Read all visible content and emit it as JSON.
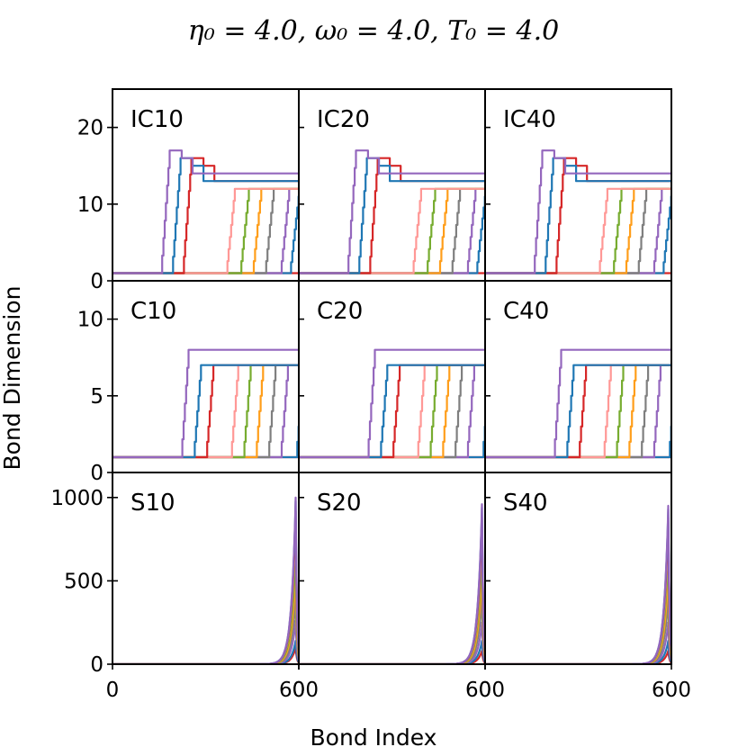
{
  "figure": {
    "title": "η₀ = 4.0, ω₀ = 4.0, T₀ = 4.0",
    "xlabel": "Bond Index",
    "ylabel": "Bond Dimension"
  },
  "chart_data": {
    "type": "line",
    "xlim": [
      0,
      600
    ],
    "xticks": [
      0,
      600
    ],
    "xtick_labels": [
      "0",
      "600"
    ],
    "colors": [
      "#d62728",
      "#1f77b4",
      "#9467bd",
      "#7f7f7f",
      "#ff9e1b",
      "#77ac30",
      "#ff9896",
      "#d62728",
      "#1f77b4",
      "#9467bd"
    ],
    "rows": [
      {
        "family": "IC",
        "ylim": [
          0,
          25
        ],
        "yticks": [
          0,
          10,
          20
        ],
        "ytick_labels": [
          "0",
          "10",
          "20"
        ],
        "panels": [
          {
            "label": "IC10",
            "series": [
              {
                "onset": 600,
                "peak": 1
              },
              {
                "onset": 575,
                "peak": 11
              },
              {
                "onset": 545,
                "peak": 12
              },
              {
                "onset": 495,
                "peak": 12
              },
              {
                "onset": 455,
                "peak": 12
              },
              {
                "onset": 415,
                "peak": 12
              },
              {
                "onset": 370,
                "peak": 12
              },
              {
                "onset": 230,
                "peak": 16
              },
              {
                "onset": 195,
                "peak": 16
              },
              {
                "onset": 160,
                "peak": 17
              }
            ]
          },
          {
            "label": "IC20",
            "series": [
              {
                "onset": 600,
                "peak": 1
              },
              {
                "onset": 575,
                "peak": 11
              },
              {
                "onset": 545,
                "peak": 12
              },
              {
                "onset": 495,
                "peak": 12
              },
              {
                "onset": 455,
                "peak": 12
              },
              {
                "onset": 415,
                "peak": 12
              },
              {
                "onset": 370,
                "peak": 12
              },
              {
                "onset": 230,
                "peak": 16
              },
              {
                "onset": 195,
                "peak": 16
              },
              {
                "onset": 160,
                "peak": 17
              }
            ]
          },
          {
            "label": "IC40",
            "series": [
              {
                "onset": 600,
                "peak": 1
              },
              {
                "onset": 575,
                "peak": 11
              },
              {
                "onset": 545,
                "peak": 12
              },
              {
                "onset": 495,
                "peak": 12
              },
              {
                "onset": 455,
                "peak": 12
              },
              {
                "onset": 415,
                "peak": 12
              },
              {
                "onset": 370,
                "peak": 12
              },
              {
                "onset": 230,
                "peak": 16
              },
              {
                "onset": 195,
                "peak": 16
              },
              {
                "onset": 160,
                "peak": 17
              }
            ]
          }
        ]
      },
      {
        "family": "C",
        "ylim": [
          0,
          12.5
        ],
        "yticks": [
          0,
          5,
          10
        ],
        "ytick_labels": [
          "0",
          "5",
          "10"
        ],
        "panels": [
          {
            "label": "C10",
            "series": [
              {
                "onset": 600,
                "peak": 1
              },
              {
                "onset": 595,
                "peak": 7
              },
              {
                "onset": 545,
                "peak": 7
              },
              {
                "onset": 505,
                "peak": 7
              },
              {
                "onset": 465,
                "peak": 7
              },
              {
                "onset": 425,
                "peak": 7
              },
              {
                "onset": 385,
                "peak": 7
              },
              {
                "onset": 305,
                "peak": 7
              },
              {
                "onset": 265,
                "peak": 7
              },
              {
                "onset": 225,
                "peak": 8
              }
            ]
          },
          {
            "label": "C20",
            "series": [
              {
                "onset": 600,
                "peak": 1
              },
              {
                "onset": 595,
                "peak": 7
              },
              {
                "onset": 545,
                "peak": 7
              },
              {
                "onset": 505,
                "peak": 7
              },
              {
                "onset": 465,
                "peak": 7
              },
              {
                "onset": 425,
                "peak": 7
              },
              {
                "onset": 385,
                "peak": 7
              },
              {
                "onset": 305,
                "peak": 7
              },
              {
                "onset": 265,
                "peak": 7
              },
              {
                "onset": 225,
                "peak": 8
              }
            ]
          },
          {
            "label": "C40",
            "series": [
              {
                "onset": 600,
                "peak": 1
              },
              {
                "onset": 595,
                "peak": 7
              },
              {
                "onset": 545,
                "peak": 7
              },
              {
                "onset": 505,
                "peak": 7
              },
              {
                "onset": 465,
                "peak": 7
              },
              {
                "onset": 425,
                "peak": 7
              },
              {
                "onset": 385,
                "peak": 7
              },
              {
                "onset": 305,
                "peak": 7
              },
              {
                "onset": 265,
                "peak": 7
              },
              {
                "onset": 225,
                "peak": 8
              }
            ]
          }
        ]
      },
      {
        "family": "S",
        "ylim": [
          0,
          1150
        ],
        "yticks": [
          0,
          500,
          1000
        ],
        "ytick_labels": [
          "0",
          "500",
          "1000"
        ],
        "panels": [
          {
            "label": "S10",
            "series": [
              {
                "peak_x": 590,
                "peak": 100
              },
              {
                "peak_x": 590,
                "peak": 140
              },
              {
                "peak_x": 590,
                "peak": 260
              },
              {
                "peak_x": 590,
                "peak": 400
              },
              {
                "peak_x": 590,
                "peak": 550
              },
              {
                "peak_x": 590,
                "peak": 700
              },
              {
                "peak_x": 590,
                "peak": 870
              },
              {
                "peak_x": 590,
                "peak": 920
              },
              {
                "peak_x": 590,
                "peak": 980
              },
              {
                "peak_x": 590,
                "peak": 1000
              }
            ]
          },
          {
            "label": "S20",
            "series": [
              {
                "peak_x": 590,
                "peak": 80
              },
              {
                "peak_x": 590,
                "peak": 140
              },
              {
                "peak_x": 590,
                "peak": 250
              },
              {
                "peak_x": 590,
                "peak": 400
              },
              {
                "peak_x": 590,
                "peak": 550
              },
              {
                "peak_x": 590,
                "peak": 700
              },
              {
                "peak_x": 590,
                "peak": 820
              },
              {
                "peak_x": 590,
                "peak": 880
              },
              {
                "peak_x": 590,
                "peak": 940
              },
              {
                "peak_x": 590,
                "peak": 960
              }
            ]
          },
          {
            "label": "S40",
            "series": [
              {
                "peak_x": 590,
                "peak": 80
              },
              {
                "peak_x": 590,
                "peak": 140
              },
              {
                "peak_x": 590,
                "peak": 250
              },
              {
                "peak_x": 590,
                "peak": 400
              },
              {
                "peak_x": 590,
                "peak": 550
              },
              {
                "peak_x": 590,
                "peak": 700
              },
              {
                "peak_x": 590,
                "peak": 820
              },
              {
                "peak_x": 590,
                "peak": 880
              },
              {
                "peak_x": 590,
                "peak": 930
              },
              {
                "peak_x": 590,
                "peak": 950
              }
            ]
          }
        ]
      }
    ]
  }
}
